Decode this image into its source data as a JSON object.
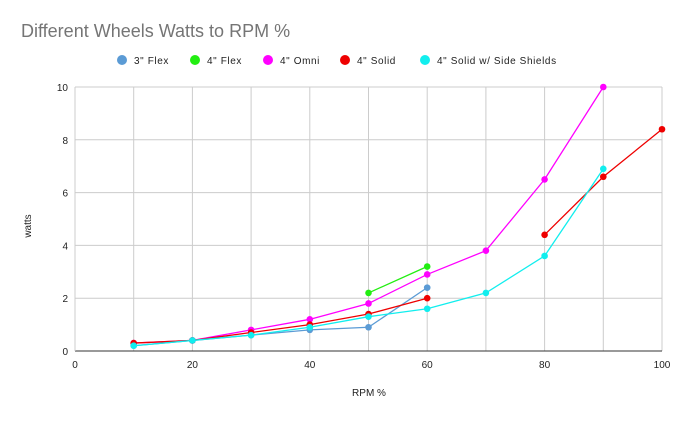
{
  "chart_data": {
    "type": "line",
    "title": "Different Wheels Watts to RPM %",
    "xlabel": "RPM %",
    "ylabel": "watts",
    "xlim": [
      0,
      100
    ],
    "ylim": [
      0,
      10
    ],
    "xticks": [
      0,
      20,
      40,
      60,
      80,
      100
    ],
    "yticks": [
      0,
      2,
      4,
      6,
      8,
      10
    ],
    "grid": true,
    "legend_position": "top",
    "series": [
      {
        "name": "3\" Flex",
        "color": "#5b9bd5",
        "points": [
          [
            10,
            0.2
          ],
          [
            20,
            0.4
          ],
          [
            30,
            0.6
          ],
          [
            40,
            0.8
          ],
          [
            50,
            0.9
          ],
          [
            60,
            2.4
          ]
        ]
      },
      {
        "name": "4\" Flex",
        "color": "#22ee11",
        "points": [
          [
            50,
            2.2
          ],
          [
            60,
            3.2
          ]
        ]
      },
      {
        "name": "4\" Omni",
        "color": "#ff00ff",
        "points": [
          [
            10,
            0.3
          ],
          [
            20,
            0.4
          ],
          [
            30,
            0.8
          ],
          [
            40,
            1.2
          ],
          [
            50,
            1.8
          ],
          [
            60,
            2.9
          ],
          [
            70,
            3.8
          ],
          [
            80,
            6.5
          ],
          [
            90,
            10.0
          ]
        ]
      },
      {
        "name": "4\" Solid",
        "color": "#ee0000",
        "segments": [
          [
            [
              10,
              0.3
            ],
            [
              20,
              0.4
            ],
            [
              30,
              0.7
            ],
            [
              40,
              1.0
            ],
            [
              50,
              1.4
            ],
            [
              60,
              2.0
            ]
          ],
          [
            [
              80,
              4.4
            ],
            [
              90,
              6.6
            ],
            [
              100,
              8.4
            ]
          ]
        ]
      },
      {
        "name": "4\" Solid w/ Side Shields",
        "color": "#11eeee",
        "points": [
          [
            10,
            0.2
          ],
          [
            20,
            0.4
          ],
          [
            30,
            0.6
          ],
          [
            40,
            0.9
          ],
          [
            50,
            1.3
          ],
          [
            60,
            1.6
          ],
          [
            70,
            2.2
          ],
          [
            80,
            3.6
          ],
          [
            90,
            6.9
          ]
        ]
      }
    ]
  }
}
